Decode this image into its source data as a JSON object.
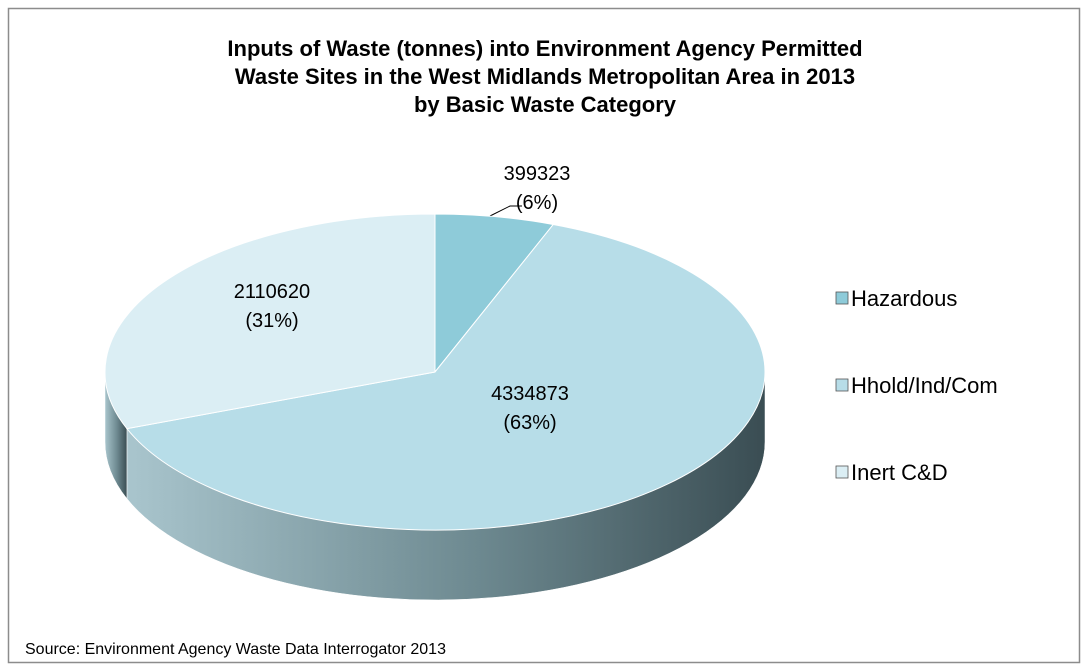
{
  "chart_data": {
    "type": "pie",
    "title_lines": [
      "Inputs of Waste (tonnes) into Environment Agency Permitted",
      "Waste Sites in the West Midlands Metropolitan Area in 2013",
      "by Basic Waste Category"
    ],
    "categories": [
      "Hazardous",
      "Hhold/Ind/Com",
      "Inert C&D"
    ],
    "values": [
      399323,
      4334873,
      2110620
    ],
    "percent_labels": [
      "(6%)",
      "(63%)",
      "(31%)"
    ],
    "colors": [
      "#8ecbd9",
      "#b7dde8",
      "#dbeef4"
    ],
    "legend": "right",
    "source": "Source: Environment Agency Waste Data Interrogator 2013"
  }
}
